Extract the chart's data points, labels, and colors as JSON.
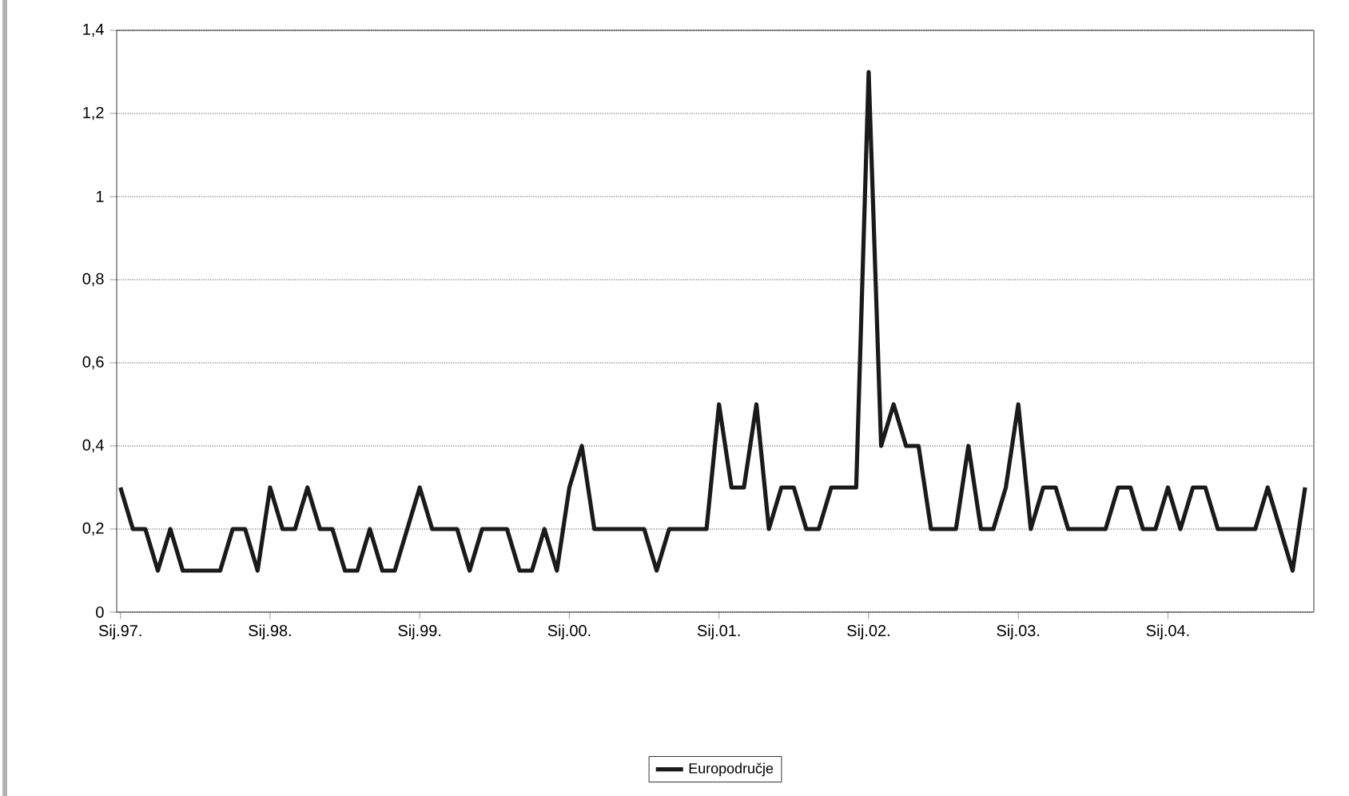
{
  "chart_data": {
    "type": "line",
    "categories": [
      "Sij.97.",
      null,
      null,
      null,
      null,
      null,
      null,
      null,
      null,
      null,
      null,
      null,
      "Sij.98.",
      null,
      null,
      null,
      null,
      null,
      null,
      null,
      null,
      null,
      null,
      null,
      "Sij.99.",
      null,
      null,
      null,
      null,
      null,
      null,
      null,
      null,
      null,
      null,
      null,
      "Sij.00.",
      null,
      null,
      null,
      null,
      null,
      null,
      null,
      null,
      null,
      null,
      null,
      "Sij.01.",
      null,
      null,
      null,
      null,
      null,
      null,
      null,
      null,
      null,
      null,
      null,
      "Sij.02.",
      null,
      null,
      null,
      null,
      null,
      null,
      null,
      null,
      null,
      null,
      null,
      "Sij.03.",
      null,
      null,
      null,
      null,
      null,
      null,
      null,
      null,
      null,
      null,
      null,
      "Sij.04.",
      null,
      null,
      null,
      null,
      null,
      null,
      null,
      null,
      null,
      null,
      null
    ],
    "series": [
      {
        "name": "Europodručje",
        "color": "#1a1a1a",
        "values": [
          0.3,
          0.2,
          0.2,
          0.1,
          0.2,
          0.1,
          0.1,
          0.1,
          0.1,
          0.2,
          0.2,
          0.1,
          0.3,
          0.2,
          0.2,
          0.3,
          0.2,
          0.2,
          0.1,
          0.1,
          0.2,
          0.1,
          0.1,
          0.2,
          0.3,
          0.2,
          0.2,
          0.2,
          0.1,
          0.2,
          0.2,
          0.2,
          0.1,
          0.1,
          0.2,
          0.1,
          0.3,
          0.4,
          0.2,
          0.2,
          0.2,
          0.2,
          0.2,
          0.1,
          0.2,
          0.2,
          0.2,
          0.2,
          0.5,
          0.3,
          0.3,
          0.5,
          0.2,
          0.3,
          0.3,
          0.2,
          0.2,
          0.3,
          0.3,
          0.3,
          1.3,
          0.4,
          0.5,
          0.4,
          0.4,
          0.2,
          0.2,
          0.2,
          0.4,
          0.2,
          0.2,
          0.3,
          0.5,
          0.2,
          0.3,
          0.3,
          0.2,
          0.2,
          0.2,
          0.2,
          0.3,
          0.3,
          0.2,
          0.2,
          0.3,
          0.2,
          0.3,
          0.3,
          0.2,
          0.2,
          0.2,
          0.2,
          0.3,
          0.2,
          0.1,
          0.3
        ]
      }
    ],
    "ylim": [
      0,
      1.4
    ],
    "yticks": [
      0,
      {
        "value": 0.2,
        "label": "0,2"
      },
      {
        "value": 0.4,
        "label": "0,4"
      },
      {
        "value": 0.6,
        "label": "0,6"
      },
      {
        "value": 0.8,
        "label": "0,8"
      },
      1,
      {
        "value": 1.2,
        "label": "1,2"
      },
      {
        "value": 1.4,
        "label": "1,4"
      }
    ],
    "grid": "y",
    "legend": "bottom"
  }
}
